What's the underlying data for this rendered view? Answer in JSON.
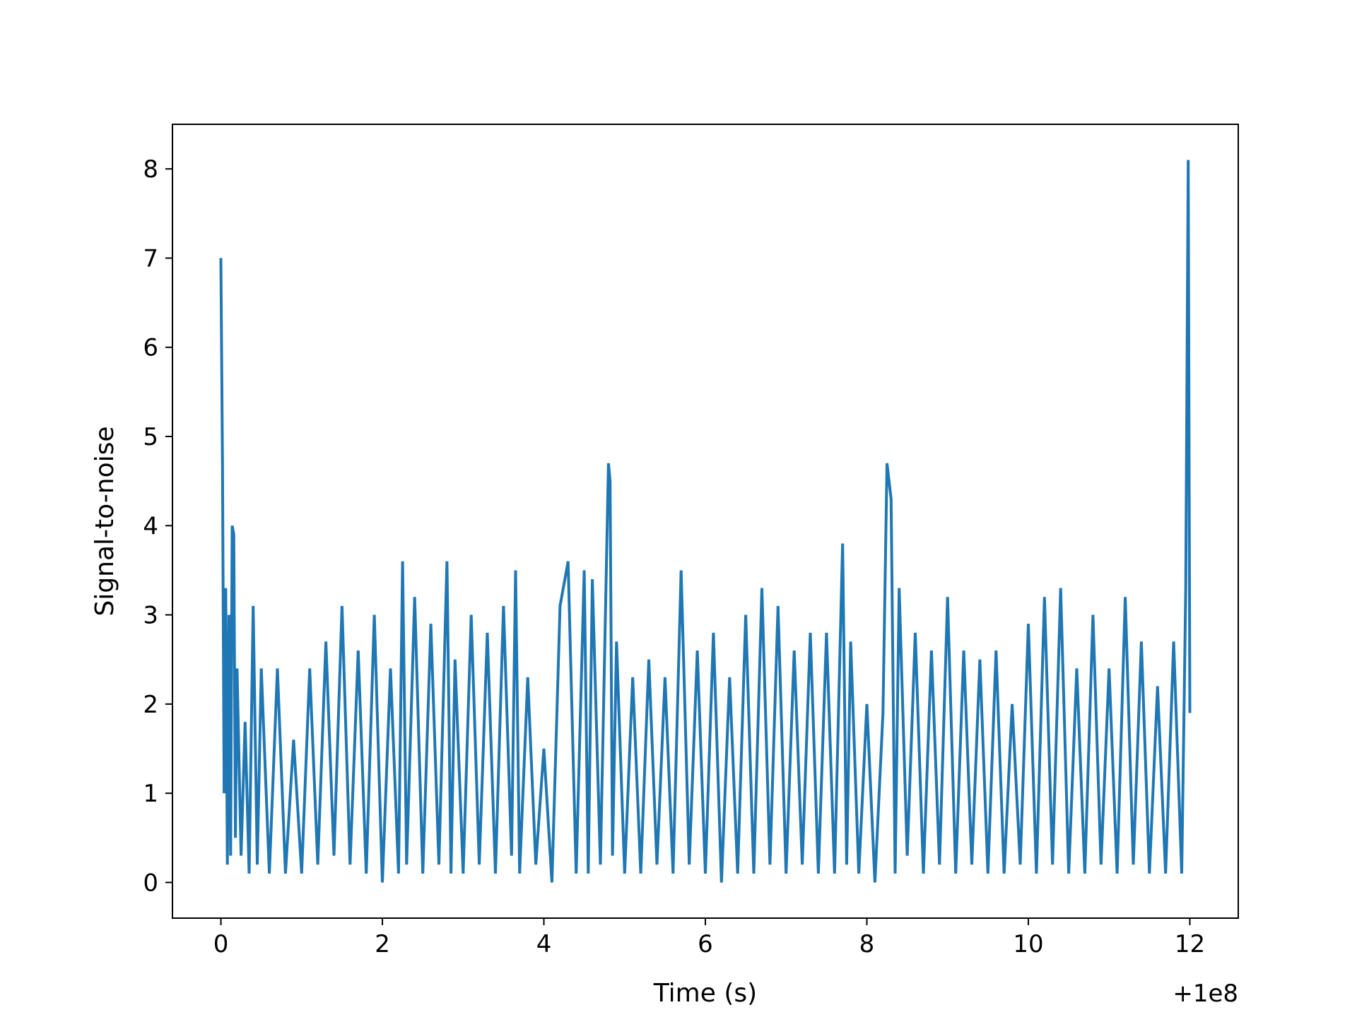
{
  "chart_data": {
    "type": "line",
    "title": "",
    "xlabel": "Time (s)",
    "ylabel": "Signal-to-noise",
    "x_offset_label": "+1e8",
    "xlim": [
      -0.6,
      12.6
    ],
    "ylim": [
      -0.4,
      8.5
    ],
    "x_ticks": [
      0,
      2,
      4,
      6,
      8,
      10,
      12
    ],
    "x_tick_labels": [
      "0",
      "2",
      "4",
      "6",
      "8",
      "10",
      "12"
    ],
    "y_ticks": [
      0,
      1,
      2,
      3,
      4,
      5,
      6,
      7,
      8
    ],
    "y_tick_labels": [
      "0",
      "1",
      "2",
      "3",
      "4",
      "5",
      "6",
      "7",
      "8"
    ],
    "grid": false,
    "legend": "none",
    "series": [
      {
        "color": "#1f77b4",
        "x": [
          0,
          0.02,
          0.04,
          0.06,
          0.08,
          0.1,
          0.12,
          0.14,
          0.16,
          0.18,
          0.2,
          0.25,
          0.3,
          0.35,
          0.4,
          0.45,
          0.5,
          0.6,
          0.7,
          0.8,
          0.9,
          1.0,
          1.1,
          1.2,
          1.3,
          1.4,
          1.5,
          1.6,
          1.7,
          1.8,
          1.9,
          2.0,
          2.1,
          2.2,
          2.25,
          2.3,
          2.4,
          2.5,
          2.6,
          2.7,
          2.8,
          2.85,
          2.9,
          3.0,
          3.1,
          3.2,
          3.3,
          3.4,
          3.5,
          3.6,
          3.65,
          3.7,
          3.8,
          3.9,
          4.0,
          4.1,
          4.2,
          4.3,
          4.4,
          4.5,
          4.55,
          4.6,
          4.7,
          4.8,
          4.82,
          4.85,
          4.9,
          5.0,
          5.1,
          5.2,
          5.3,
          5.4,
          5.5,
          5.6,
          5.7,
          5.8,
          5.9,
          6.0,
          6.1,
          6.2,
          6.3,
          6.4,
          6.5,
          6.6,
          6.7,
          6.8,
          6.9,
          7.0,
          7.1,
          7.2,
          7.3,
          7.4,
          7.5,
          7.6,
          7.7,
          7.75,
          7.8,
          7.9,
          8.0,
          8.1,
          8.2,
          8.25,
          8.3,
          8.35,
          8.4,
          8.5,
          8.6,
          8.7,
          8.8,
          8.9,
          9.0,
          9.1,
          9.2,
          9.3,
          9.4,
          9.5,
          9.6,
          9.7,
          9.8,
          9.9,
          10.0,
          10.1,
          10.2,
          10.3,
          10.4,
          10.5,
          10.6,
          10.7,
          10.8,
          10.9,
          11.0,
          11.1,
          11.2,
          11.3,
          11.4,
          11.5,
          11.6,
          11.7,
          11.8,
          11.9,
          11.95,
          11.98,
          12.0
        ],
        "values": [
          7.0,
          4.7,
          1.0,
          3.3,
          0.2,
          3.0,
          0.3,
          4.0,
          3.9,
          0.5,
          2.4,
          0.3,
          1.8,
          0.1,
          3.1,
          0.2,
          2.4,
          0.1,
          2.4,
          0.1,
          1.6,
          0.1,
          2.4,
          0.2,
          2.7,
          0.3,
          3.1,
          0.2,
          2.6,
          0.1,
          3.0,
          0.0,
          2.4,
          0.1,
          3.6,
          0.2,
          3.2,
          0.1,
          2.9,
          0.2,
          3.6,
          0.1,
          2.5,
          0.1,
          3.0,
          0.2,
          2.8,
          0.1,
          3.1,
          0.3,
          3.5,
          0.1,
          2.3,
          0.2,
          1.5,
          0.0,
          3.1,
          3.6,
          0.1,
          3.5,
          0.1,
          3.4,
          0.2,
          4.7,
          4.5,
          0.3,
          2.7,
          0.1,
          2.3,
          0.1,
          2.5,
          0.2,
          2.3,
          0.1,
          3.5,
          0.2,
          2.6,
          0.1,
          2.8,
          0.0,
          2.3,
          0.1,
          3.0,
          0.1,
          3.3,
          0.2,
          3.1,
          0.1,
          2.6,
          0.2,
          2.8,
          0.1,
          2.8,
          0.1,
          3.8,
          0.2,
          2.7,
          0.1,
          2.0,
          0.0,
          1.9,
          4.7,
          4.3,
          0.1,
          3.3,
          0.3,
          2.8,
          0.1,
          2.6,
          0.2,
          3.2,
          0.1,
          2.6,
          0.2,
          2.5,
          0.1,
          2.6,
          0.1,
          2.0,
          0.2,
          2.9,
          0.1,
          3.2,
          0.2,
          3.3,
          0.1,
          2.4,
          0.1,
          3.0,
          0.2,
          2.4,
          0.1,
          3.2,
          0.2,
          2.7,
          0.1,
          2.2,
          0.1,
          2.7,
          0.1,
          3.3,
          8.1,
          1.9
        ]
      }
    ]
  }
}
